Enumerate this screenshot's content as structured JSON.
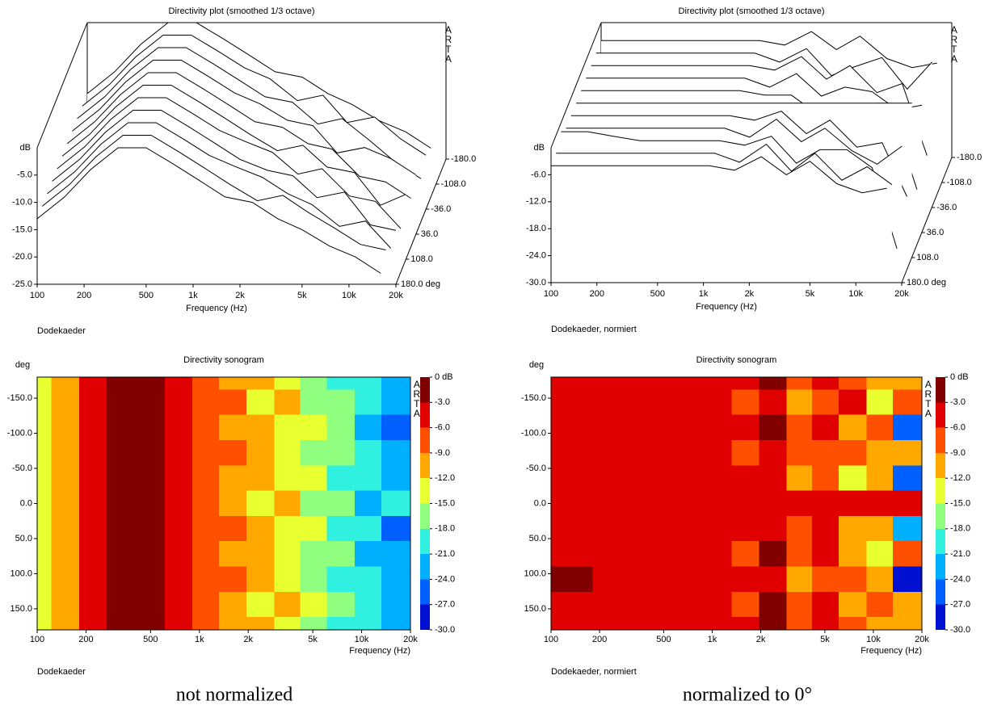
{
  "chart_data": [
    {
      "type": "waterfall",
      "title": "Directivity plot (smoothed 1/3 octave)",
      "watermark": "ARTA",
      "ylabel": "dB",
      "xlabel": "Frequency (Hz)",
      "note": "Dodekaeder",
      "xscale": "log",
      "color": "#000000",
      "x": [
        100,
        150,
        220,
        330,
        500,
        750,
        1100,
        1600,
        2400,
        3500,
        5000,
        7500,
        11000,
        16000
      ],
      "xlim": [
        100,
        20000
      ],
      "xticks": [
        100,
        200,
        500,
        {
          "value": 1000,
          "label": "1k"
        },
        {
          "value": 2000,
          "label": "2k"
        },
        {
          "value": 5000,
          "label": "5k"
        },
        {
          "value": 10000,
          "label": "10k"
        },
        {
          "value": 20000,
          "label": "20k"
        }
      ],
      "ylim": [
        -25,
        0
      ],
      "yticks": [
        {
          "value": -5,
          "label": "-5.0"
        },
        {
          "value": -10,
          "label": "-10.0"
        },
        {
          "value": -15,
          "label": "-15.0"
        },
        {
          "value": -20,
          "label": "-20.0"
        },
        {
          "value": -25,
          "label": "-25.0"
        }
      ],
      "z": [
        -180,
        -144,
        -108,
        -72,
        -36,
        0,
        36,
        72,
        108,
        144,
        180
      ],
      "zlim": [
        -180,
        180
      ],
      "zticks": [
        {
          "value": -180,
          "label": "-180.0"
        },
        {
          "value": -108,
          "label": "-108.0"
        },
        {
          "value": -36,
          "label": "-36.0"
        },
        {
          "value": 36,
          "label": "36.0"
        },
        {
          "value": 108,
          "label": "108.0"
        },
        {
          "value": 180,
          "label": "180.0 deg"
        }
      ],
      "values": [
        [
          -13,
          -9,
          -4,
          0,
          0,
          -3,
          -6,
          -9,
          -10,
          -13,
          -15,
          -18,
          -20,
          -23
        ],
        [
          -13,
          -9,
          -4,
          0,
          0,
          -3,
          -6,
          -8,
          -12,
          -11,
          -16,
          -15,
          -19,
          -22
        ],
        [
          -13,
          -9,
          -4,
          0,
          0,
          -3,
          -6,
          -9,
          -10,
          -14,
          -13,
          -17,
          -21,
          -24
        ],
        [
          -13,
          -9,
          -4,
          0,
          0,
          -3,
          -6,
          -8,
          -11,
          -12,
          -17,
          -16,
          -18,
          -21
        ],
        [
          -13,
          -9,
          -4,
          0,
          0,
          -3,
          -6,
          -9,
          -10,
          -13,
          -14,
          -19,
          -20,
          -23
        ],
        [
          -13,
          -9,
          -4,
          0,
          0,
          -3,
          -6,
          -9,
          -12,
          -11,
          -15,
          -16,
          -22,
          -20
        ],
        [
          -13,
          -9,
          -4,
          0,
          0,
          -3,
          -6,
          -8,
          -10,
          -14,
          -13,
          -18,
          -19,
          -24
        ],
        [
          -13,
          -9,
          -4,
          0,
          0,
          -3,
          -6,
          -9,
          -11,
          -12,
          -16,
          -15,
          -21,
          -22
        ],
        [
          -13,
          -9,
          -4,
          0,
          0,
          -3,
          -6,
          -8,
          -10,
          -13,
          -15,
          -19,
          -18,
          -23
        ],
        [
          -13,
          -9,
          -4,
          0,
          0,
          -3,
          -6,
          -9,
          -12,
          -11,
          -14,
          -17,
          -20,
          -21
        ],
        [
          -13,
          -9,
          -4,
          0,
          0,
          -3,
          -6,
          -9,
          -10,
          -13,
          -15,
          -18,
          -20,
          -23
        ]
      ]
    },
    {
      "type": "waterfall",
      "title": "Directivity plot (smoothed 1/3 octave)",
      "watermark": "ARTA",
      "ylabel": "dB",
      "xlabel": "Frequency (Hz)",
      "note": "Dodekaeder, normiert",
      "xscale": "log",
      "color": "#000000",
      "x": [
        100,
        150,
        220,
        330,
        500,
        750,
        1100,
        1600,
        2400,
        3500,
        5000,
        7500,
        11000,
        16000
      ],
      "xlim": [
        100,
        20000
      ],
      "xticks": [
        100,
        200,
        500,
        {
          "value": 1000,
          "label": "1k"
        },
        {
          "value": 2000,
          "label": "2k"
        },
        {
          "value": 5000,
          "label": "5k"
        },
        {
          "value": 10000,
          "label": "10k"
        },
        {
          "value": 20000,
          "label": "20k"
        }
      ],
      "ylim": [
        -30,
        0
      ],
      "yticks": [
        {
          "value": -6,
          "label": "-6.0"
        },
        {
          "value": -12,
          "label": "-12.0"
        },
        {
          "value": -18,
          "label": "-18.0"
        },
        {
          "value": -24,
          "label": "-24.0"
        },
        {
          "value": -30,
          "label": "-30.0"
        }
      ],
      "z": [
        -180,
        -144,
        -108,
        -72,
        -36,
        0,
        36,
        72,
        108,
        144,
        180
      ],
      "zlim": [
        -180,
        180
      ],
      "zticks": [
        {
          "value": -180,
          "label": "-180.0"
        },
        {
          "value": -108,
          "label": "-108.0"
        },
        {
          "value": -36,
          "label": "-36.0"
        },
        {
          "value": 36,
          "label": "36.0"
        },
        {
          "value": 108,
          "label": "108.0"
        },
        {
          "value": 180,
          "label": "180.0 deg"
        }
      ],
      "values": [
        [
          -4,
          -4,
          -4,
          -4,
          -4,
          -4,
          -4,
          -5,
          -2,
          -6,
          -3,
          -8,
          -10,
          -9
        ],
        [
          -4,
          -4,
          -4,
          -4,
          -4,
          -4,
          -4,
          -6,
          -3,
          -9,
          -7,
          -5,
          -12,
          -6
        ],
        [
          -4,
          -4,
          -4,
          -4,
          -4,
          -4,
          -4,
          -5,
          -2,
          -7,
          -4,
          -10,
          -8,
          -24
        ],
        [
          -4,
          -4,
          -4,
          -4,
          -4,
          -4,
          -4,
          -6,
          -3,
          -8,
          -6,
          -7,
          -11,
          -10
        ],
        [
          -4,
          -4,
          -4,
          -4,
          -4,
          -4,
          -4,
          -5,
          -5,
          -9,
          -8,
          -12,
          -9,
          -26
        ],
        [
          -4,
          -4,
          -4,
          -4,
          -4,
          -4,
          -4,
          -4,
          -4,
          -4,
          -4,
          -4,
          -4,
          -4
        ],
        [
          -4,
          -4,
          -4,
          -4,
          -4,
          -4,
          -4,
          -5,
          -3,
          -8,
          -5,
          -11,
          -10,
          -22
        ],
        [
          -4,
          -4,
          -4,
          -4,
          -4,
          -4,
          -4,
          -6,
          -2,
          -7,
          -4,
          -9,
          -12,
          -8
        ],
        [
          -2,
          -2,
          -3,
          -4,
          -4,
          -4,
          -4,
          -5,
          -3,
          -9,
          -6,
          -6,
          -10,
          -28
        ],
        [
          -4,
          -4,
          -4,
          -4,
          -4,
          -4,
          -4,
          -6,
          -2,
          -8,
          -4,
          -10,
          -7,
          -11
        ],
        [
          -4,
          -4,
          -4,
          -4,
          -4,
          -4,
          -4,
          -5,
          -2,
          -6,
          -3,
          -8,
          -10,
          -9
        ]
      ]
    },
    {
      "type": "heatmap",
      "title": "Directivity sonogram",
      "watermark": "ARTA",
      "ylabel": "deg",
      "xlabel": "Frequency (Hz)",
      "note": "Dodekaeder",
      "xscale": "log",
      "x": [
        100,
        150,
        220,
        330,
        500,
        750,
        1100,
        1600,
        2400,
        3500,
        5000,
        7500,
        11000,
        16000
      ],
      "xlim": [
        100,
        20000
      ],
      "xticks": [
        100,
        200,
        500,
        {
          "value": 1000,
          "label": "1k"
        },
        {
          "value": 2000,
          "label": "2k"
        },
        {
          "value": 5000,
          "label": "5k"
        },
        {
          "value": 10000,
          "label": "10k"
        },
        {
          "value": 20000,
          "label": "20k"
        }
      ],
      "y": [
        -180,
        -144,
        -108,
        -72,
        -36,
        0,
        36,
        72,
        108,
        144,
        180
      ],
      "ylim": [
        -180,
        180
      ],
      "yticks": [
        {
          "value": -150,
          "label": "-150.0"
        },
        {
          "value": -100,
          "label": "-100.0"
        },
        {
          "value": -50,
          "label": "-50.0"
        },
        {
          "value": 0,
          "label": "0.0"
        },
        {
          "value": 50,
          "label": "50.0"
        },
        {
          "value": 100,
          "label": "100.0"
        },
        {
          "value": 150,
          "label": "150.0"
        }
      ],
      "zlim": [
        -30,
        0
      ],
      "zticks": [
        {
          "value": 0,
          "label": "0 dB"
        },
        {
          "value": -3,
          "label": "-3.0"
        },
        {
          "value": -6,
          "label": "-6.0"
        },
        {
          "value": -9,
          "label": "-9.0"
        },
        {
          "value": -12,
          "label": "-12.0"
        },
        {
          "value": -15,
          "label": "-15.0"
        },
        {
          "value": -18,
          "label": "-18.0"
        },
        {
          "value": -21,
          "label": "-21.0"
        },
        {
          "value": -24,
          "label": "-24.0"
        },
        {
          "value": -27,
          "label": "-27.0"
        },
        {
          "value": -30,
          "label": "-30.0"
        }
      ],
      "colors": [
        "#800000",
        "#e00000",
        "#ff5000",
        "#ffa800",
        "#e8ff30",
        "#90ff80",
        "#30f0e0",
        "#00b0ff",
        "#0060ff",
        "#0010d0"
      ],
      "z": [
        [
          -13,
          -9,
          -4,
          0,
          0,
          -3,
          -6,
          -9,
          -10,
          -13,
          -15,
          -18,
          -20,
          -23
        ],
        [
          -13,
          -9,
          -4,
          0,
          0,
          -3,
          -6,
          -8,
          -12,
          -11,
          -16,
          -15,
          -19,
          -22
        ],
        [
          -13,
          -9,
          -4,
          0,
          0,
          -3,
          -6,
          -9,
          -10,
          -14,
          -13,
          -17,
          -21,
          -24
        ],
        [
          -13,
          -9,
          -4,
          0,
          0,
          -3,
          -6,
          -8,
          -11,
          -12,
          -17,
          -16,
          -18,
          -21
        ],
        [
          -13,
          -9,
          -4,
          0,
          0,
          -3,
          -6,
          -9,
          -10,
          -13,
          -14,
          -19,
          -20,
          -23
        ],
        [
          -13,
          -9,
          -4,
          0,
          0,
          -3,
          -6,
          -9,
          -12,
          -11,
          -15,
          -16,
          -22,
          -20
        ],
        [
          -13,
          -9,
          -4,
          0,
          0,
          -3,
          -6,
          -8,
          -10,
          -14,
          -13,
          -18,
          -19,
          -24
        ],
        [
          -13,
          -9,
          -4,
          0,
          0,
          -3,
          -6,
          -9,
          -11,
          -12,
          -16,
          -15,
          -21,
          -22
        ],
        [
          -13,
          -9,
          -4,
          0,
          0,
          -3,
          -6,
          -8,
          -10,
          -13,
          -15,
          -19,
          -18,
          -23
        ],
        [
          -13,
          -9,
          -4,
          0,
          0,
          -3,
          -6,
          -9,
          -12,
          -11,
          -14,
          -17,
          -20,
          -21
        ],
        [
          -13,
          -9,
          -4,
          0,
          0,
          -3,
          -6,
          -9,
          -10,
          -13,
          -15,
          -18,
          -20,
          -23
        ]
      ]
    },
    {
      "type": "heatmap",
      "title": "Directivity sonogram",
      "watermark": "ARTA",
      "ylabel": "deg",
      "xlabel": "Frequency (Hz)",
      "note": "Dodekaeder, normiert",
      "xscale": "log",
      "x": [
        100,
        150,
        220,
        330,
        500,
        750,
        1100,
        1600,
        2400,
        3500,
        5000,
        7500,
        11000,
        16000
      ],
      "xlim": [
        100,
        20000
      ],
      "xticks": [
        100,
        200,
        500,
        {
          "value": 1000,
          "label": "1k"
        },
        {
          "value": 2000,
          "label": "2k"
        },
        {
          "value": 5000,
          "label": "5k"
        },
        {
          "value": 10000,
          "label": "10k"
        },
        {
          "value": 20000,
          "label": "20k"
        }
      ],
      "y": [
        -180,
        -144,
        -108,
        -72,
        -36,
        0,
        36,
        72,
        108,
        144,
        180
      ],
      "ylim": [
        -180,
        180
      ],
      "yticks": [
        {
          "value": -150,
          "label": "-150.0"
        },
        {
          "value": -100,
          "label": "-100.0"
        },
        {
          "value": -50,
          "label": "-50.0"
        },
        {
          "value": 0,
          "label": "0.0"
        },
        {
          "value": 50,
          "label": "50.0"
        },
        {
          "value": 100,
          "label": "100.0"
        },
        {
          "value": 150,
          "label": "150.0"
        }
      ],
      "zlim": [
        -30,
        0
      ],
      "zticks": [
        {
          "value": 0,
          "label": "0 dB"
        },
        {
          "value": -3,
          "label": "-3.0"
        },
        {
          "value": -6,
          "label": "-6.0"
        },
        {
          "value": -9,
          "label": "-9.0"
        },
        {
          "value": -12,
          "label": "-12.0"
        },
        {
          "value": -15,
          "label": "-15.0"
        },
        {
          "value": -18,
          "label": "-18.0"
        },
        {
          "value": -21,
          "label": "-21.0"
        },
        {
          "value": -24,
          "label": "-24.0"
        },
        {
          "value": -27,
          "label": "-27.0"
        },
        {
          "value": -30,
          "label": "-30.0"
        }
      ],
      "colors": [
        "#800000",
        "#e00000",
        "#ff5000",
        "#ffa800",
        "#e8ff30",
        "#90ff80",
        "#30f0e0",
        "#00b0ff",
        "#0060ff",
        "#0010d0"
      ],
      "z": [
        [
          -4,
          -4,
          -4,
          -4,
          -4,
          -4,
          -4,
          -5,
          -2,
          -6,
          -3,
          -8,
          -10,
          -9
        ],
        [
          -4,
          -4,
          -4,
          -4,
          -4,
          -4,
          -4,
          -6,
          -3,
          -9,
          -7,
          -5,
          -12,
          -6
        ],
        [
          -4,
          -4,
          -4,
          -4,
          -4,
          -4,
          -4,
          -5,
          -2,
          -7,
          -4,
          -10,
          -8,
          -24
        ],
        [
          -4,
          -4,
          -4,
          -4,
          -4,
          -4,
          -4,
          -6,
          -3,
          -8,
          -6,
          -7,
          -11,
          -10
        ],
        [
          -4,
          -4,
          -4,
          -4,
          -4,
          -4,
          -4,
          -5,
          -5,
          -9,
          -8,
          -12,
          -9,
          -26
        ],
        [
          -4,
          -4,
          -4,
          -4,
          -4,
          -4,
          -4,
          -4,
          -4,
          -4,
          -4,
          -4,
          -4,
          -4
        ],
        [
          -4,
          -4,
          -4,
          -4,
          -4,
          -4,
          -4,
          -5,
          -3,
          -8,
          -5,
          -11,
          -10,
          -22
        ],
        [
          -4,
          -4,
          -4,
          -4,
          -4,
          -4,
          -4,
          -6,
          -2,
          -7,
          -4,
          -9,
          -12,
          -8
        ],
        [
          -2,
          -2,
          -3,
          -4,
          -4,
          -4,
          -4,
          -5,
          -3,
          -9,
          -6,
          -6,
          -10,
          -28
        ],
        [
          -4,
          -4,
          -4,
          -4,
          -4,
          -4,
          -4,
          -6,
          -2,
          -8,
          -4,
          -10,
          -7,
          -11
        ],
        [
          -4,
          -4,
          -4,
          -4,
          -4,
          -4,
          -4,
          -5,
          -2,
          -6,
          -3,
          -8,
          -10,
          -9
        ]
      ]
    }
  ],
  "captions": [
    "not normalized",
    "normalized to 0°"
  ]
}
